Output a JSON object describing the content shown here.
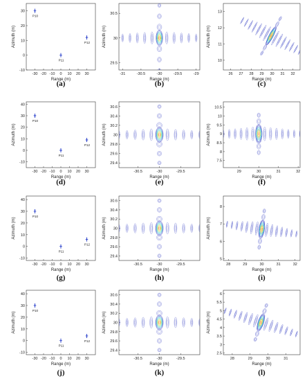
{
  "panel_labels": [
    "(a)",
    "(b)",
    "(c)",
    "(d)",
    "(e)",
    "(f)",
    "(g)",
    "(h)",
    "(i)",
    "(j)",
    "(k)",
    "(l)"
  ],
  "colors": {
    "axis": "#333333",
    "marker": "#1d35c8",
    "contour_outer": "#4b54c9",
    "contour_inner": [
      "#3aa6e0",
      "#4fd1c5",
      "#a7dd5b",
      "#f3c33a",
      "#e8743f"
    ]
  },
  "chart_data": [
    {
      "panel": "(a)",
      "type": "scatter",
      "xlabel": "Range (m)",
      "ylabel": "Azimuth (m)",
      "xlim": [
        -40,
        40
      ],
      "ylim": [
        -10,
        35
      ],
      "xticks": [
        -30,
        -20,
        -10,
        0,
        10,
        20,
        30
      ],
      "yticks": [
        -10,
        0,
        10,
        20,
        30
      ],
      "points": [
        {
          "label": "P10",
          "x": -30,
          "y": 30
        },
        {
          "label": "P11",
          "x": 0,
          "y": 0
        },
        {
          "label": "P12",
          "x": 30,
          "y": 12
        }
      ]
    },
    {
      "panel": "(b)",
      "type": "contour",
      "xlabel": "Range (m)",
      "ylabel": "Azimuth (m)",
      "xlim": [
        -31.1,
        -28.9
      ],
      "ylim": [
        29.35,
        30.7
      ],
      "xticks": [
        -31,
        -30.5,
        -30,
        -29.5,
        -29
      ],
      "yticks": [
        29.5,
        30,
        30.5
      ],
      "center": [
        -30,
        30
      ],
      "main_rx": 0.09,
      "main_ry": 0.16,
      "rotation_deg": 0,
      "sidelobe_dx": 0.2,
      "sidelobe_dy": 0.22
    },
    {
      "panel": "(c)",
      "type": "contour",
      "xlabel": "Range (m)",
      "ylabel": "Azimuth (m)",
      "xlim": [
        25.3,
        32.7
      ],
      "ylim": [
        9.4,
        13.5
      ],
      "xticks": [
        26,
        27,
        28,
        29,
        30,
        31,
        32
      ],
      "yticks": [
        10,
        11,
        12,
        13
      ],
      "center": [
        29.9,
        11.5
      ],
      "main_rx": 0.2,
      "main_ry": 0.62,
      "rotation_deg": 28,
      "sidelobe_dx": 0.45,
      "sidelobe_dy": 0.4
    },
    {
      "panel": "(d)",
      "type": "scatter",
      "xlabel": "Range (m)",
      "ylabel": "Azimuth (m)",
      "xlim": [
        -40,
        40
      ],
      "ylim": [
        -15,
        42
      ],
      "xticks": [
        -30,
        -20,
        -10,
        0,
        10,
        20,
        30
      ],
      "yticks": [
        -10,
        0,
        10,
        20,
        30,
        40
      ],
      "points": [
        {
          "label": "P10",
          "x": -30,
          "y": 30
        },
        {
          "label": "P11",
          "x": 0,
          "y": 0
        },
        {
          "label": "P12",
          "x": 30,
          "y": 9
        }
      ]
    },
    {
      "panel": "(e)",
      "type": "contour",
      "xlabel": "Range (m)",
      "ylabel": "Azimuth (m)",
      "xlim": [
        -30.95,
        -29.05
      ],
      "ylim": [
        29.3,
        30.7
      ],
      "xticks": [
        -30.5,
        -30,
        -29.5
      ],
      "yticks": [
        29.4,
        29.6,
        29.8,
        30,
        30.2,
        30.4,
        30.6
      ],
      "center": [
        -30,
        30
      ],
      "main_rx": 0.09,
      "main_ry": 0.16,
      "rotation_deg": 0,
      "sidelobe_dx": 0.19,
      "sidelobe_dy": 0.2
    },
    {
      "panel": "(f)",
      "type": "contour",
      "xlabel": "Range (m)",
      "ylabel": "Azimuth (m)",
      "xlim": [
        28.2,
        32.1
      ],
      "ylim": [
        7.1,
        10.8
      ],
      "xticks": [
        29,
        30,
        31,
        32
      ],
      "yticks": [
        7.5,
        8,
        8.5,
        9,
        9.5,
        10,
        10.5
      ],
      "center": [
        30,
        9
      ],
      "main_rx": 0.17,
      "main_ry": 0.5,
      "rotation_deg": 0,
      "sidelobe_dx": 0.3,
      "sidelobe_dy": 0.35
    },
    {
      "panel": "(g)",
      "type": "scatter",
      "xlabel": "Range (m)",
      "ylabel": "Azimuth (m)",
      "xlim": [
        -40,
        40
      ],
      "ylim": [
        -12,
        43
      ],
      "xticks": [
        -30,
        -20,
        -10,
        0,
        10,
        20,
        30
      ],
      "yticks": [
        -10,
        0,
        10,
        20,
        30,
        40
      ],
      "points": [
        {
          "label": "P10",
          "x": -30,
          "y": 30
        },
        {
          "label": "P11",
          "x": 0,
          "y": 0
        },
        {
          "label": "P12",
          "x": 30,
          "y": 6
        }
      ]
    },
    {
      "panel": "(h)",
      "type": "contour",
      "xlabel": "Range (m)",
      "ylabel": "Azimuth (m)",
      "xlim": [
        -30.95,
        -29.05
      ],
      "ylim": [
        29.3,
        30.7
      ],
      "xticks": [
        -30.5,
        -30,
        -29.5
      ],
      "yticks": [
        29.4,
        29.6,
        29.8,
        30,
        30.2,
        30.4,
        30.6
      ],
      "center": [
        -30,
        30
      ],
      "main_rx": 0.09,
      "main_ry": 0.16,
      "rotation_deg": 0,
      "sidelobe_dx": 0.19,
      "sidelobe_dy": 0.2
    },
    {
      "panel": "(i)",
      "type": "contour",
      "xlabel": "Range (m)",
      "ylabel": "Azimuth (m)",
      "xlim": [
        27.7,
        32.3
      ],
      "ylim": [
        4.9,
        8.6
      ],
      "xticks": [
        28,
        29,
        30,
        31,
        32
      ],
      "yticks": [
        5,
        6,
        7,
        8
      ],
      "center": [
        30,
        6.7
      ],
      "main_rx": 0.17,
      "main_ry": 0.5,
      "rotation_deg": 8,
      "sidelobe_dx": 0.3,
      "sidelobe_dy": 0.35
    },
    {
      "panel": "(j)",
      "type": "scatter",
      "xlabel": "Range (m)",
      "ylabel": "Azimuth (m)",
      "xlim": [
        -40,
        40
      ],
      "ylim": [
        -12,
        43
      ],
      "xticks": [
        -30,
        -20,
        -10,
        0,
        10,
        20,
        30
      ],
      "yticks": [
        -10,
        0,
        10,
        20,
        30,
        40
      ],
      "points": [
        {
          "label": "P10",
          "x": -30,
          "y": 30
        },
        {
          "label": "P11",
          "x": 0,
          "y": 0
        },
        {
          "label": "P12",
          "x": 30,
          "y": 4
        }
      ]
    },
    {
      "panel": "(k)",
      "type": "contour",
      "xlabel": "Range (m)",
      "ylabel": "Azimuth (m)",
      "xlim": [
        -30.95,
        -29.05
      ],
      "ylim": [
        29.3,
        30.7
      ],
      "xticks": [
        -30.5,
        -30,
        -29.5
      ],
      "yticks": [
        29.4,
        29.6,
        29.8,
        30,
        30.2,
        30.4,
        30.6
      ],
      "center": [
        -30,
        30
      ],
      "main_rx": 0.09,
      "main_ry": 0.16,
      "rotation_deg": 0,
      "sidelobe_dx": 0.19,
      "sidelobe_dy": 0.2
    },
    {
      "panel": "(l)",
      "type": "contour",
      "xlabel": "Range (m)",
      "ylabel": "Azimuth (m)",
      "xlim": [
        27.5,
        31.8
      ],
      "ylim": [
        2.4,
        6.2
      ],
      "xticks": [
        28,
        29,
        30,
        31
      ],
      "yticks": [
        2.5,
        3,
        3.5,
        4,
        4.5,
        5,
        5.5,
        6
      ],
      "center": [
        29.6,
        4.3
      ],
      "main_rx": 0.16,
      "main_ry": 0.5,
      "rotation_deg": 18,
      "sidelobe_dx": 0.3,
      "sidelobe_dy": 0.35
    }
  ]
}
